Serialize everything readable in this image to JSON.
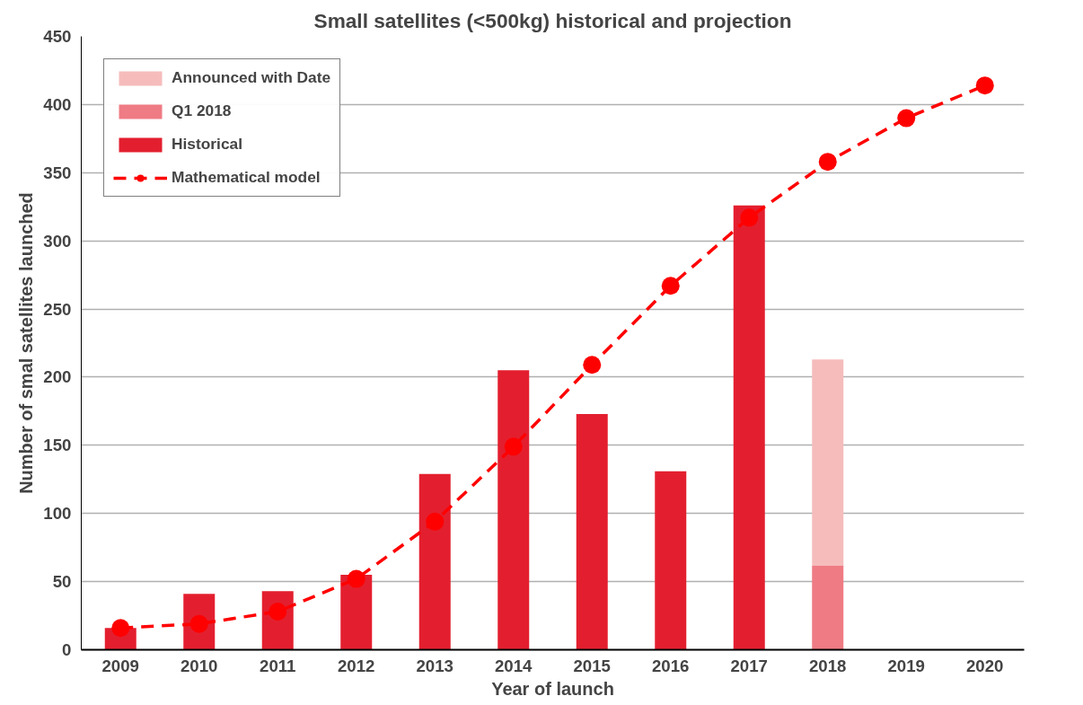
{
  "chart_data": {
    "type": "bar",
    "title": "Small satellites (<500kg) historical and projection",
    "xlabel": "Year of launch",
    "ylabel": "Number of smal satellites launched",
    "categories": [
      "2009",
      "2010",
      "2011",
      "2012",
      "2013",
      "2014",
      "2015",
      "2016",
      "2017",
      "2018",
      "2019",
      "2020"
    ],
    "stacked": true,
    "ylim": [
      0,
      450
    ],
    "yticks": [
      0,
      50,
      100,
      150,
      200,
      250,
      300,
      350,
      400,
      450
    ],
    "grid": "y",
    "legend": "top left",
    "series": [
      {
        "name": "Historical",
        "color": "#e31f2f",
        "values": [
          16,
          41,
          43,
          55,
          129,
          205,
          173,
          131,
          326,
          null,
          null,
          null
        ]
      },
      {
        "name": "Q1 2018",
        "color": "#ef7b84",
        "values": [
          null,
          null,
          null,
          null,
          null,
          null,
          null,
          null,
          null,
          62,
          null,
          null
        ]
      },
      {
        "name": "Announced with Date",
        "color": "#f6bcbc",
        "values": [
          null,
          null,
          null,
          null,
          null,
          null,
          null,
          null,
          null,
          151,
          null,
          null
        ]
      },
      {
        "name": "Mathematical model",
        "type": "line",
        "color": "#ff0000",
        "marker": "circle",
        "line_style": "dashed",
        "values": [
          16,
          19,
          28,
          52,
          94,
          149,
          209,
          267,
          317,
          358,
          390,
          414
        ]
      }
    ]
  }
}
